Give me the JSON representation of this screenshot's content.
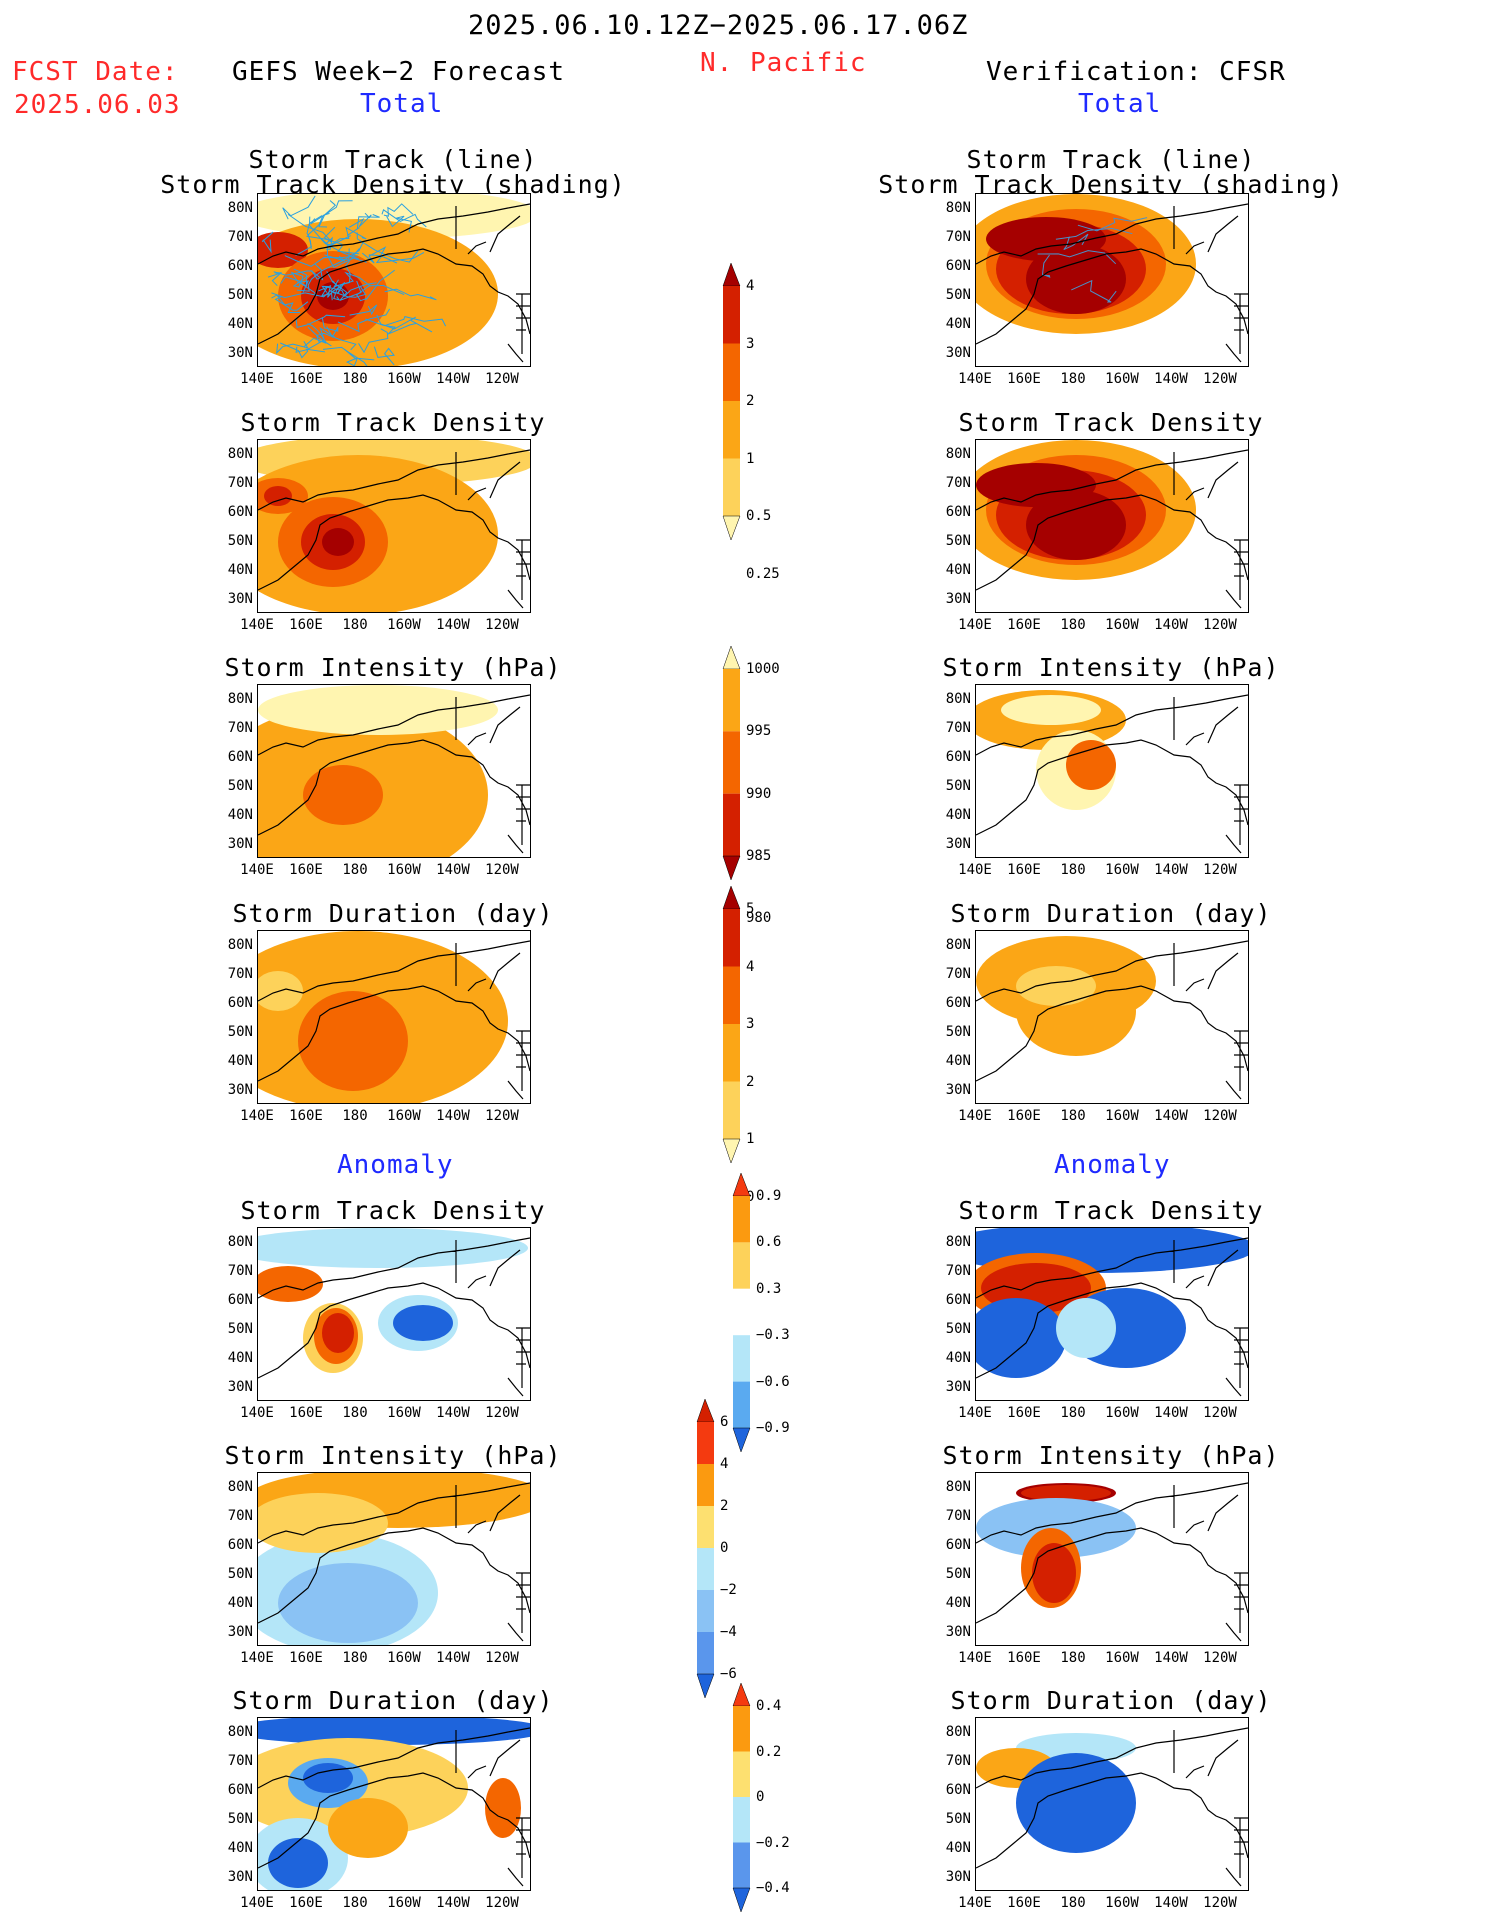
{
  "header": {
    "date_range": "2025.06.10.12Z−2025.06.17.06Z",
    "fcst_label": "FCST Date:",
    "fcst_date": "2025.06.03",
    "left_model": "GEFS Week−2 Forecast",
    "region": "N. Pacific",
    "right_model": "Verification: CFSR",
    "total_left": "Total",
    "total_right": "Total",
    "anomaly_left": "Anomaly",
    "anomaly_right": "Anomaly"
  },
  "axes": {
    "lat_labels": [
      "80N",
      "70N",
      "60N",
      "50N",
      "40N",
      "30N"
    ],
    "lon_labels": [
      "140E",
      "160E",
      "180",
      "160W",
      "140W",
      "120W"
    ]
  },
  "panels": {
    "track_title_1": "Storm Track (line)",
    "track_title_2": "Storm Track Density (shading)",
    "density": "Storm Track Density",
    "intensity": "Storm Intensity (hPa)",
    "duration": "Storm Duration (day)"
  },
  "colorbars": {
    "density": {
      "labels": [
        "4",
        "3",
        "2",
        "1",
        "0.5",
        "0.25"
      ],
      "colors": [
        "#a50000",
        "#d42000",
        "#f46600",
        "#fba616",
        "#fdd25a",
        "#fff5b0"
      ]
    },
    "intensity": {
      "labels": [
        "1000",
        "995",
        "990",
        "985",
        "980"
      ],
      "colors": [
        "#fff5b0",
        "#fba616",
        "#f46600",
        "#d42000",
        "#a50000"
      ]
    },
    "duration": {
      "labels": [
        "5",
        "4",
        "3",
        "2",
        "1",
        "0"
      ],
      "colors": [
        "#a50000",
        "#d42000",
        "#f46600",
        "#fba616",
        "#fdd25a",
        "#fff5b0"
      ]
    },
    "anom_density": {
      "labels": [
        "0.9",
        "0.6",
        "0.3",
        "−0.3",
        "−0.6",
        "−0.9"
      ],
      "colors": [
        "#f43a10",
        "#fb9a10",
        "#fdd25a",
        "#ffffff",
        "#b4e6f8",
        "#5aaaf0",
        "#1e64dc"
      ]
    },
    "anom_intensity": {
      "labels": [
        "6",
        "4",
        "2",
        "0",
        "−2",
        "−4",
        "−6"
      ],
      "colors": [
        "#d42000",
        "#f43a10",
        "#fb9a10",
        "#fde070",
        "#b4e6f8",
        "#8ac2f4",
        "#5a96ec",
        "#1e64dc"
      ]
    },
    "anom_duration": {
      "labels": [
        "0.4",
        "0.2",
        "0",
        "−0.2",
        "−0.4"
      ],
      "colors": [
        "#f43a10",
        "#fb9a10",
        "#fde070",
        "#b4e6f8",
        "#5a96ec",
        "#1e64dc"
      ]
    }
  },
  "colors": {
    "text_red": "#ff2a2a",
    "text_blue": "#1f2aff"
  }
}
